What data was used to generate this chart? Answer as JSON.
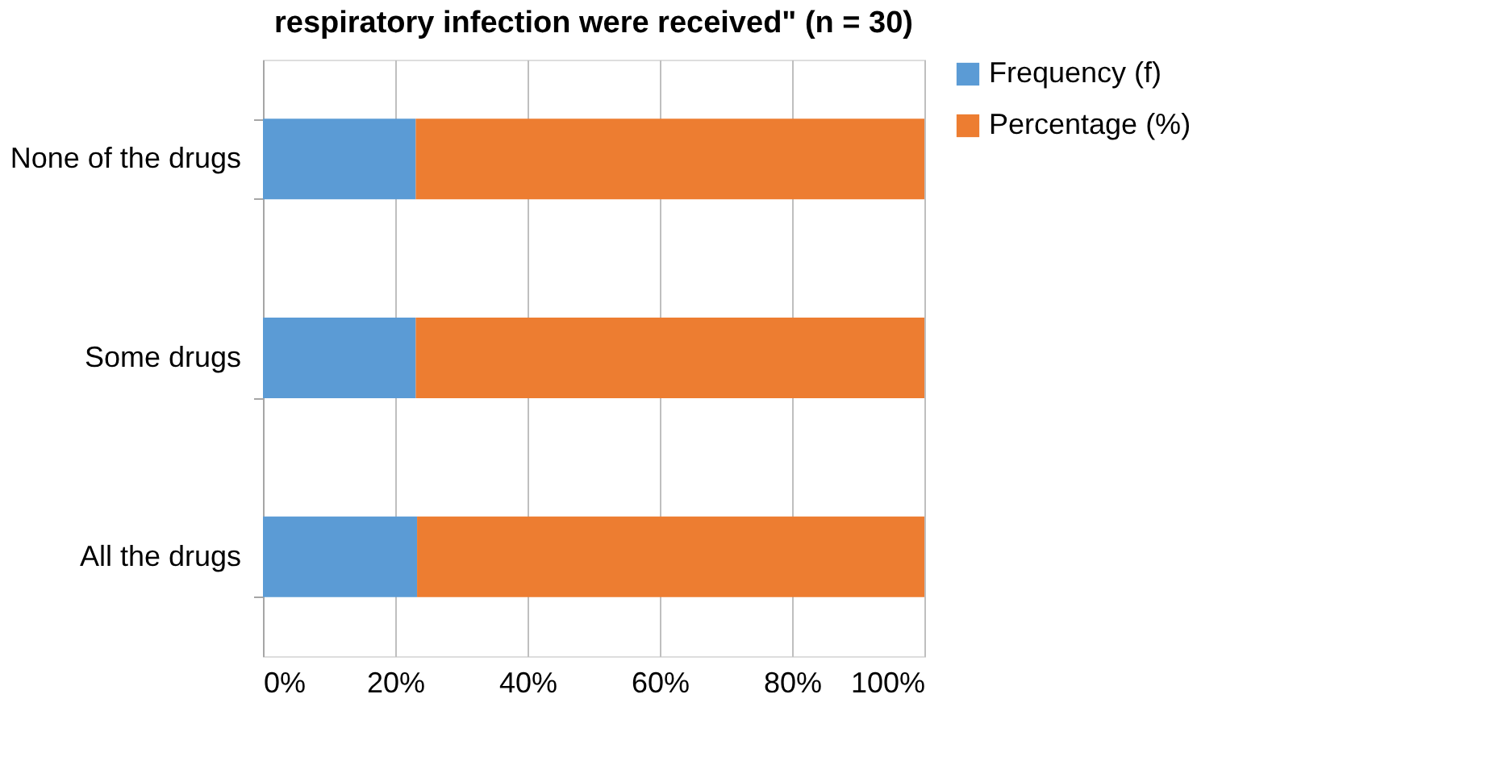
{
  "chart_data": {
    "type": "bar",
    "orientation": "horizontal",
    "stacked": true,
    "title": "respiratory infection were received\" (n = 30)",
    "categories": [
      "None of the drugs",
      "Some drugs",
      "All the drugs"
    ],
    "series": [
      {
        "name": "Frequency (f)",
        "color": "#5b9bd5",
        "values": [
          23.1,
          23.1,
          23.3
        ]
      },
      {
        "name": "Percentage (%)",
        "color": "#ed7d31",
        "values": [
          76.9,
          76.9,
          76.7
        ]
      }
    ],
    "xlim": [
      0,
      100
    ],
    "xticks": [
      {
        "value": 0,
        "label": "0%"
      },
      {
        "value": 20,
        "label": "20%"
      },
      {
        "value": 40,
        "label": "40%"
      },
      {
        "value": 60,
        "label": "60%"
      },
      {
        "value": 80,
        "label": "80%"
      },
      {
        "value": 100,
        "label": "100%"
      }
    ],
    "grid": "x",
    "legend": "right"
  }
}
